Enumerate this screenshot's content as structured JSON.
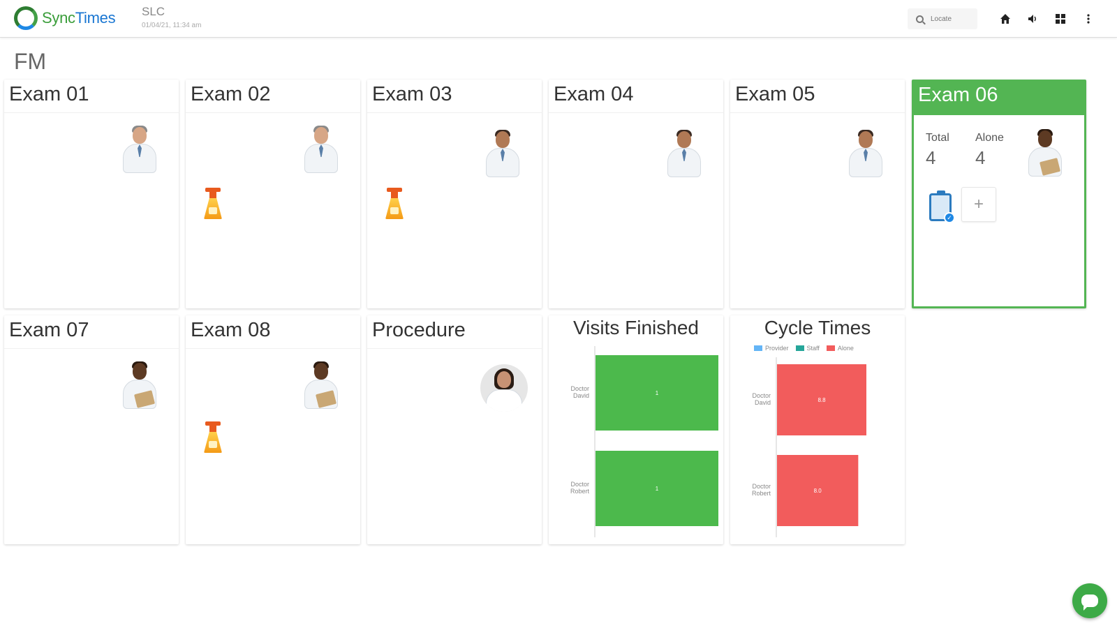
{
  "header": {
    "logo_sync": "Sync",
    "logo_times": "Times",
    "site_name": "SLC",
    "site_time": "01/04/21, 11:34 am",
    "search_placeholder": "Locate",
    "icons": [
      "home-icon",
      "volume-icon",
      "grid-icon",
      "more-vert-icon"
    ]
  },
  "area": {
    "title": "FM"
  },
  "rooms": [
    {
      "title": "Exam 01",
      "person": "doctor-light",
      "cleaning": false
    },
    {
      "title": "Exam 02",
      "person": "doctor-light",
      "cleaning": true
    },
    {
      "title": "Exam 03",
      "person": "doctor-mid",
      "cleaning": true
    },
    {
      "title": "Exam 04",
      "person": "doctor-mid",
      "cleaning": false
    },
    {
      "title": "Exam 05",
      "person": "doctor-mid",
      "cleaning": false
    },
    {
      "title": "Exam 06",
      "person": "patient-dark",
      "active": true,
      "stats": {
        "total_label": "Total",
        "total_value": "4",
        "alone_label": "Alone",
        "alone_value": "4"
      },
      "add_label": "+"
    },
    {
      "title": "Exam 07",
      "person": "patient-dark",
      "cleaning": false
    },
    {
      "title": "Exam 08",
      "person": "patient-dark",
      "cleaning": true
    },
    {
      "title": "Procedure",
      "person": "nurse-round",
      "cleaning": false
    }
  ],
  "colors": {
    "accent_green": "#53b553",
    "bar_green": "#4cb94c",
    "bar_red": "#f25c5c",
    "provider_blue": "#64b5f6",
    "staff_teal": "#26a69a"
  },
  "chart_data": [
    {
      "type": "bar",
      "orientation": "horizontal",
      "title": "Visits Finished",
      "categories": [
        "Doctor David",
        "Doctor Robert"
      ],
      "series": [
        {
          "values": [
            1,
            1
          ]
        }
      ],
      "data_labels": [
        "1",
        "1"
      ],
      "xlim": [
        0,
        1
      ]
    },
    {
      "type": "bar",
      "orientation": "horizontal",
      "stacked": true,
      "title": "Cycle Times",
      "legend": [
        "Provider",
        "Staff",
        "Alone"
      ],
      "legend_position": "top",
      "categories": [
        "Doctor David",
        "Doctor Robert"
      ],
      "series": [
        {
          "name": "Provider",
          "values": [
            0,
            0
          ]
        },
        {
          "name": "Staff",
          "values": [
            0,
            0
          ]
        },
        {
          "name": "Alone",
          "values": [
            8.8,
            8.0
          ]
        }
      ],
      "data_labels": [
        "8.8",
        "8.0"
      ],
      "xlim": [
        0,
        11
      ]
    }
  ]
}
